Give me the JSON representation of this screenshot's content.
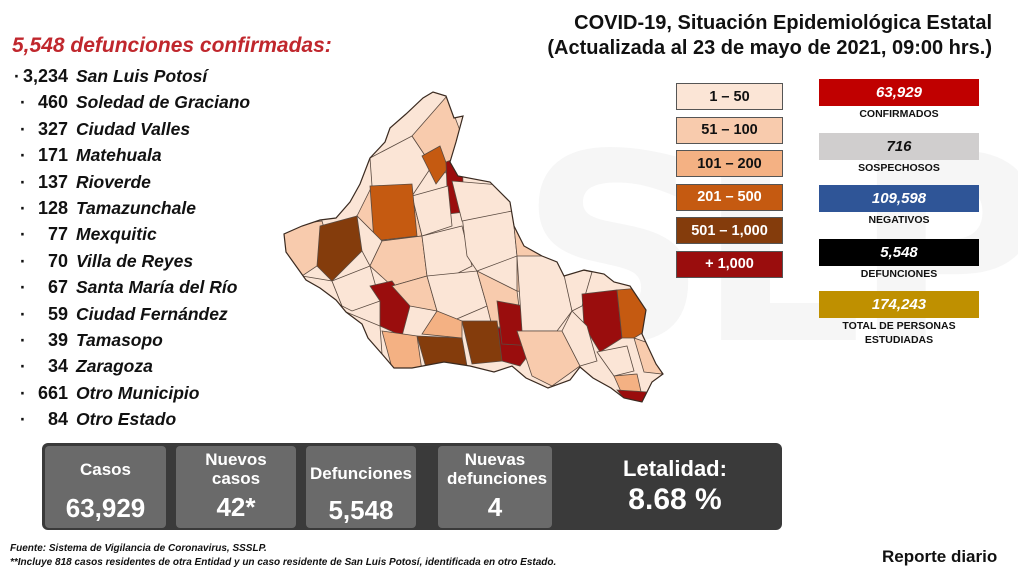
{
  "header": {
    "title_line1": "COVID-19, Situación Epidemiológica Estatal",
    "title_line2": "(Actualizada al 23 de mayo de 2021, 09:00 hrs.)"
  },
  "deaths": {
    "headline": "5,548 defunciones confirmadas:",
    "municipalities": [
      {
        "count": "3,234",
        "name": "San Luis Potosí"
      },
      {
        "count": "460",
        "name": "Soledad de Graciano"
      },
      {
        "count": "327",
        "name": "Ciudad Valles"
      },
      {
        "count": "171",
        "name": "Matehuala"
      },
      {
        "count": "137",
        "name": "Rioverde"
      },
      {
        "count": "128",
        "name": "Tamazunchale"
      },
      {
        "count": "77",
        "name": "Mexquitic"
      },
      {
        "count": "70",
        "name": "Villa de Reyes"
      },
      {
        "count": "67",
        "name": "Santa María del Río"
      },
      {
        "count": "59",
        "name": "Ciudad Fernández"
      },
      {
        "count": "39",
        "name": "Tamasopo"
      },
      {
        "count": "34",
        "name": "Zaragoza"
      },
      {
        "count": "661",
        "name": "Otro Municipio"
      },
      {
        "count": "84",
        "name": "Otro Estado"
      }
    ]
  },
  "legend": [
    {
      "label": "1 – 50",
      "color": "#fbe5d6",
      "text_color": "#111111"
    },
    {
      "label": "51 – 100",
      "color": "#f8cbad",
      "text_color": "#111111"
    },
    {
      "label": "101 – 200",
      "color": "#f4b183",
      "text_color": "#111111"
    },
    {
      "label": "201 – 500",
      "color": "#c55a11",
      "text_color": "#ffffff"
    },
    {
      "label": "501 – 1,000",
      "color": "#843c0c",
      "text_color": "#ffffff"
    },
    {
      "label": "+ 1,000",
      "color": "#9a0d0d",
      "text_color": "#ffffff"
    }
  ],
  "stats": [
    {
      "value": "63,929",
      "label": "CONFIRMADOS",
      "color": "#c00000",
      "text_color": "#ffffff"
    },
    {
      "value": "716",
      "label": "SOSPECHOSOS",
      "color": "#d0cece",
      "text_color": "#111111"
    },
    {
      "value": "109,598",
      "label": "NEGATIVOS",
      "color": "#2f5597",
      "text_color": "#ffffff"
    },
    {
      "value": "5,548",
      "label": "DEFUNCIONES",
      "color": "#000000",
      "text_color": "#ffffff"
    },
    {
      "value": "174,243",
      "label": "TOTAL DE PERSONAS ESTUDIADAS",
      "color": "#bf9000",
      "text_color": "#ffffff"
    }
  ],
  "summary": {
    "casos_label": "Casos",
    "casos_value": "63,929",
    "nuevos_casos_label": "Nuevos casos",
    "nuevos_casos_value": "42*",
    "defunciones_label": "Defunciones",
    "defunciones_value": "5,548",
    "nuevas_defunciones_label": "Nuevas defunciones",
    "nuevas_defunciones_value": "4",
    "letalidad_label": "Letalidad:",
    "letalidad_value": "8.68 %"
  },
  "footer": {
    "source": "Fuente: Sistema de Vigilancia de Coronavirus, SSSLP.",
    "note": "**Incluye 818 casos residentes de otra Entidad y un caso residente de San Luis Potosí, identificada en otro Estado.",
    "report": "Reporte diario"
  }
}
